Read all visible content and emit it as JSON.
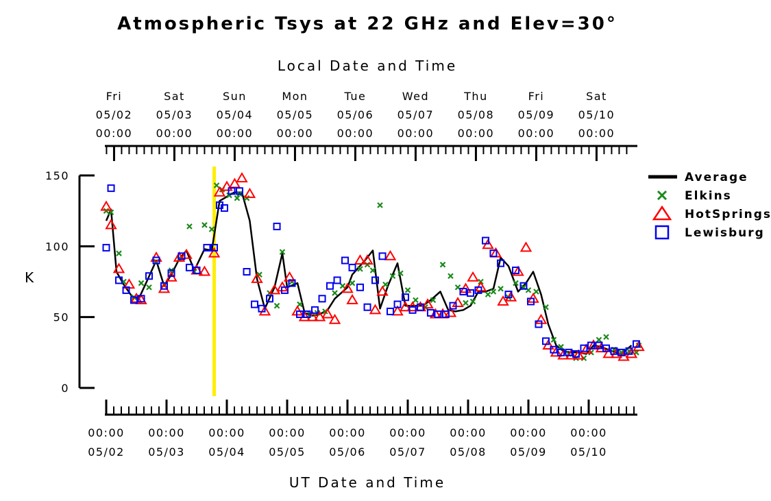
{
  "chart_data": {
    "type": "scatter",
    "title": "Atmospheric Tsys at 22 GHz and Elev=30°",
    "top_axis_label": "Local Date and Time",
    "xlabel": "UT Date and Time",
    "ylabel": "K",
    "ylim": [
      0,
      150
    ],
    "y_ticks": [
      0,
      50,
      100,
      150
    ],
    "x_unit": "UT days since 05/02 00:00",
    "xlim": [
      -0.05,
      8.75
    ],
    "x_ticks": [
      {
        "x": 0,
        "time": "00:00",
        "date": "05/02"
      },
      {
        "x": 1,
        "time": "00:00",
        "date": "05/03"
      },
      {
        "x": 2,
        "time": "00:00",
        "date": "05/04"
      },
      {
        "x": 3,
        "time": "00:00",
        "date": "05/05"
      },
      {
        "x": 4,
        "time": "00:00",
        "date": "05/06"
      },
      {
        "x": 5,
        "time": "00:00",
        "date": "05/07"
      },
      {
        "x": 6,
        "time": "00:00",
        "date": "05/08"
      },
      {
        "x": 7,
        "time": "00:00",
        "date": "05/09"
      },
      {
        "x": 8,
        "time": "00:00",
        "date": "05/10"
      }
    ],
    "top_ticks": [
      {
        "x": 0.13,
        "day": "Fri",
        "date": "05/02",
        "time": "00:00"
      },
      {
        "x": 1.13,
        "day": "Sat",
        "date": "05/03",
        "time": "00:00"
      },
      {
        "x": 2.13,
        "day": "Sun",
        "date": "05/04",
        "time": "00:00"
      },
      {
        "x": 3.13,
        "day": "Mon",
        "date": "05/05",
        "time": "00:00"
      },
      {
        "x": 4.13,
        "day": "Tue",
        "date": "05/06",
        "time": "00:00"
      },
      {
        "x": 5.13,
        "day": "Wed",
        "date": "05/07",
        "time": "00:00"
      },
      {
        "x": 6.13,
        "day": "Thu",
        "date": "05/08",
        "time": "00:00"
      },
      {
        "x": 7.13,
        "day": "Fri",
        "date": "05/09",
        "time": "00:00"
      },
      {
        "x": 8.13,
        "day": "Sat",
        "date": "05/10",
        "time": "00:00"
      }
    ],
    "marker_line": {
      "x": 1.79,
      "color": "#ffee00"
    },
    "grid": false,
    "legend_position": "right",
    "series": [
      {
        "name": "Average",
        "marker": "line",
        "color": "#000000",
        "points": [
          [
            0,
            118
          ],
          [
            0.08,
            126
          ],
          [
            0.17,
            82
          ],
          [
            0.29,
            73
          ],
          [
            0.42,
            65
          ],
          [
            0.54,
            63
          ],
          [
            0.67,
            75
          ],
          [
            0.83,
            90
          ],
          [
            0.96,
            72
          ],
          [
            1.08,
            80
          ],
          [
            1.21,
            91
          ],
          [
            1.33,
            97
          ],
          [
            1.46,
            83
          ],
          [
            1.63,
            98
          ],
          [
            1.75,
            97
          ],
          [
            1.88,
            132
          ],
          [
            2.0,
            135
          ],
          [
            2.12,
            138
          ],
          [
            2.25,
            138
          ],
          [
            2.38,
            118
          ],
          [
            2.5,
            77
          ],
          [
            2.63,
            56
          ],
          [
            2.79,
            71
          ],
          [
            2.92,
            95
          ],
          [
            3.0,
            71
          ],
          [
            3.17,
            74
          ],
          [
            3.29,
            53
          ],
          [
            3.42,
            51
          ],
          [
            3.54,
            52
          ],
          [
            3.67,
            55
          ],
          [
            3.79,
            63
          ],
          [
            4.0,
            71
          ],
          [
            4.08,
            80
          ],
          [
            4.29,
            90
          ],
          [
            4.42,
            97
          ],
          [
            4.54,
            56
          ],
          [
            4.67,
            72
          ],
          [
            4.83,
            88
          ],
          [
            4.96,
            58
          ],
          [
            5.08,
            58
          ],
          [
            5.25,
            58
          ],
          [
            5.38,
            62
          ],
          [
            5.54,
            68
          ],
          [
            5.67,
            55
          ],
          [
            5.79,
            54
          ],
          [
            5.92,
            55
          ],
          [
            6.04,
            58
          ],
          [
            6.17,
            68
          ],
          [
            6.29,
            68
          ],
          [
            6.42,
            70
          ],
          [
            6.54,
            92
          ],
          [
            6.67,
            86
          ],
          [
            6.83,
            68
          ],
          [
            6.96,
            74
          ],
          [
            7.08,
            82
          ],
          [
            7.21,
            66
          ],
          [
            7.33,
            45
          ],
          [
            7.46,
            30
          ],
          [
            7.58,
            26
          ],
          [
            7.71,
            25
          ],
          [
            7.83,
            25
          ],
          [
            7.96,
            24
          ],
          [
            8.08,
            30
          ],
          [
            8.21,
            29
          ],
          [
            8.38,
            26
          ],
          [
            8.54,
            24
          ],
          [
            8.71,
            30
          ]
        ]
      },
      {
        "name": "Elkins",
        "marker": "x",
        "color": "#1a8a1a",
        "points": [
          [
            0.0,
            125
          ],
          [
            0.08,
            124
          ],
          [
            0.21,
            95
          ],
          [
            0.29,
            75
          ],
          [
            0.46,
            64
          ],
          [
            0.58,
            74
          ],
          [
            0.71,
            71
          ],
          [
            0.83,
            89
          ],
          [
            0.96,
            73
          ],
          [
            1.08,
            83
          ],
          [
            1.21,
            91
          ],
          [
            1.38,
            114
          ],
          [
            1.46,
            82
          ],
          [
            1.63,
            115
          ],
          [
            1.75,
            112
          ],
          [
            1.83,
            143
          ],
          [
            1.92,
            140
          ],
          [
            2.04,
            136
          ],
          [
            2.17,
            134
          ],
          [
            2.21,
            137
          ],
          [
            2.33,
            134
          ],
          [
            2.54,
            80
          ],
          [
            2.71,
            67
          ],
          [
            2.83,
            58
          ],
          [
            2.92,
            96
          ],
          [
            3.08,
            75
          ],
          [
            3.21,
            59
          ],
          [
            3.38,
            52
          ],
          [
            3.5,
            53
          ],
          [
            3.63,
            54
          ],
          [
            3.79,
            67
          ],
          [
            3.92,
            72
          ],
          [
            4.08,
            74
          ],
          [
            4.21,
            84
          ],
          [
            4.33,
            87
          ],
          [
            4.42,
            83
          ],
          [
            4.54,
            129
          ],
          [
            4.63,
            73
          ],
          [
            4.75,
            79
          ],
          [
            4.88,
            81
          ],
          [
            5.0,
            69
          ],
          [
            5.13,
            62
          ],
          [
            5.29,
            57
          ],
          [
            5.42,
            62
          ],
          [
            5.58,
            87
          ],
          [
            5.71,
            79
          ],
          [
            5.83,
            71
          ],
          [
            5.96,
            60
          ],
          [
            6.08,
            61
          ],
          [
            6.21,
            75
          ],
          [
            6.33,
            66
          ],
          [
            6.42,
            68
          ],
          [
            6.54,
            70
          ],
          [
            6.67,
            64
          ],
          [
            6.79,
            74
          ],
          [
            6.92,
            71
          ],
          [
            7.0,
            69
          ],
          [
            7.13,
            68
          ],
          [
            7.29,
            57
          ],
          [
            7.42,
            34
          ],
          [
            7.54,
            29
          ],
          [
            7.67,
            24
          ],
          [
            7.79,
            21
          ],
          [
            7.92,
            21
          ],
          [
            8.04,
            25
          ],
          [
            8.17,
            34
          ],
          [
            8.29,
            36
          ],
          [
            8.42,
            27
          ],
          [
            8.54,
            25
          ],
          [
            8.67,
            26
          ],
          [
            8.79,
            25
          ],
          [
            8.83,
            30
          ]
        ]
      },
      {
        "name": "HotSprings",
        "marker": "triangle",
        "color": "#ff0000",
        "points": [
          [
            0.0,
            128
          ],
          [
            0.08,
            115
          ],
          [
            0.21,
            84
          ],
          [
            0.38,
            73
          ],
          [
            0.5,
            63
          ],
          [
            0.58,
            62
          ],
          [
            0.83,
            92
          ],
          [
            0.96,
            70
          ],
          [
            1.08,
            78
          ],
          [
            1.21,
            92
          ],
          [
            1.33,
            94
          ],
          [
            1.5,
            83
          ],
          [
            1.63,
            82
          ],
          [
            1.79,
            95
          ],
          [
            1.88,
            138
          ],
          [
            2.0,
            142
          ],
          [
            2.13,
            144
          ],
          [
            2.25,
            148
          ],
          [
            2.38,
            137
          ],
          [
            2.5,
            77
          ],
          [
            2.63,
            54
          ],
          [
            2.79,
            69
          ],
          [
            2.92,
            71
          ],
          [
            3.04,
            78
          ],
          [
            3.17,
            54
          ],
          [
            3.29,
            50
          ],
          [
            3.42,
            50
          ],
          [
            3.54,
            50
          ],
          [
            3.67,
            52
          ],
          [
            3.79,
            48
          ],
          [
            4.0,
            70
          ],
          [
            4.08,
            62
          ],
          [
            4.21,
            90
          ],
          [
            4.33,
            90
          ],
          [
            4.46,
            55
          ],
          [
            4.58,
            68
          ],
          [
            4.71,
            93
          ],
          [
            4.83,
            54
          ],
          [
            4.96,
            57
          ],
          [
            5.08,
            57
          ],
          [
            5.21,
            57
          ],
          [
            5.33,
            59
          ],
          [
            5.46,
            52
          ],
          [
            5.58,
            52
          ],
          [
            5.71,
            53
          ],
          [
            5.83,
            60
          ],
          [
            5.96,
            70
          ],
          [
            6.08,
            78
          ],
          [
            6.21,
            71
          ],
          [
            6.33,
            101
          ],
          [
            6.46,
            95
          ],
          [
            6.58,
            61
          ],
          [
            6.71,
            64
          ],
          [
            6.83,
            82
          ],
          [
            6.96,
            99
          ],
          [
            7.08,
            63
          ],
          [
            7.21,
            48
          ],
          [
            7.33,
            30
          ],
          [
            7.46,
            25
          ],
          [
            7.58,
            23
          ],
          [
            7.71,
            23
          ],
          [
            7.83,
            23
          ],
          [
            7.96,
            27
          ],
          [
            8.08,
            30
          ],
          [
            8.21,
            28
          ],
          [
            8.33,
            24
          ],
          [
            8.46,
            24
          ],
          [
            8.58,
            22
          ],
          [
            8.71,
            24
          ],
          [
            8.83,
            29
          ]
        ]
      },
      {
        "name": "Lewisburg",
        "marker": "square",
        "color": "#0000ee",
        "points": [
          [
            0.0,
            99
          ],
          [
            0.08,
            141
          ],
          [
            0.21,
            76
          ],
          [
            0.33,
            69
          ],
          [
            0.46,
            62
          ],
          [
            0.58,
            63
          ],
          [
            0.71,
            79
          ],
          [
            0.83,
            90
          ],
          [
            0.96,
            72
          ],
          [
            1.08,
            81
          ],
          [
            1.25,
            93
          ],
          [
            1.38,
            85
          ],
          [
            1.5,
            83
          ],
          [
            1.67,
            99
          ],
          [
            1.79,
            99
          ],
          [
            1.88,
            129
          ],
          [
            1.96,
            127
          ],
          [
            2.08,
            139
          ],
          [
            2.21,
            139
          ],
          [
            2.33,
            82
          ],
          [
            2.46,
            59
          ],
          [
            2.58,
            56
          ],
          [
            2.71,
            63
          ],
          [
            2.83,
            114
          ],
          [
            2.96,
            69
          ],
          [
            3.08,
            74
          ],
          [
            3.21,
            52
          ],
          [
            3.33,
            52
          ],
          [
            3.46,
            55
          ],
          [
            3.58,
            63
          ],
          [
            3.71,
            72
          ],
          [
            3.83,
            76
          ],
          [
            3.96,
            90
          ],
          [
            4.08,
            85
          ],
          [
            4.21,
            71
          ],
          [
            4.33,
            57
          ],
          [
            4.46,
            76
          ],
          [
            4.58,
            93
          ],
          [
            4.71,
            54
          ],
          [
            4.83,
            59
          ],
          [
            4.96,
            64
          ],
          [
            5.08,
            55
          ],
          [
            5.21,
            57
          ],
          [
            5.38,
            53
          ],
          [
            5.5,
            52
          ],
          [
            5.63,
            52
          ],
          [
            5.75,
            58
          ],
          [
            5.92,
            68
          ],
          [
            6.04,
            67
          ],
          [
            6.17,
            69
          ],
          [
            6.29,
            104
          ],
          [
            6.42,
            95
          ],
          [
            6.54,
            88
          ],
          [
            6.67,
            66
          ],
          [
            6.79,
            83
          ],
          [
            6.92,
            72
          ],
          [
            7.04,
            61
          ],
          [
            7.17,
            45
          ],
          [
            7.29,
            33
          ],
          [
            7.42,
            27
          ],
          [
            7.54,
            25
          ],
          [
            7.67,
            25
          ],
          [
            7.79,
            24
          ],
          [
            7.92,
            28
          ],
          [
            8.04,
            30
          ],
          [
            8.17,
            30
          ],
          [
            8.29,
            28
          ],
          [
            8.42,
            26
          ],
          [
            8.54,
            25
          ],
          [
            8.67,
            26
          ],
          [
            8.79,
            31
          ]
        ]
      }
    ]
  }
}
